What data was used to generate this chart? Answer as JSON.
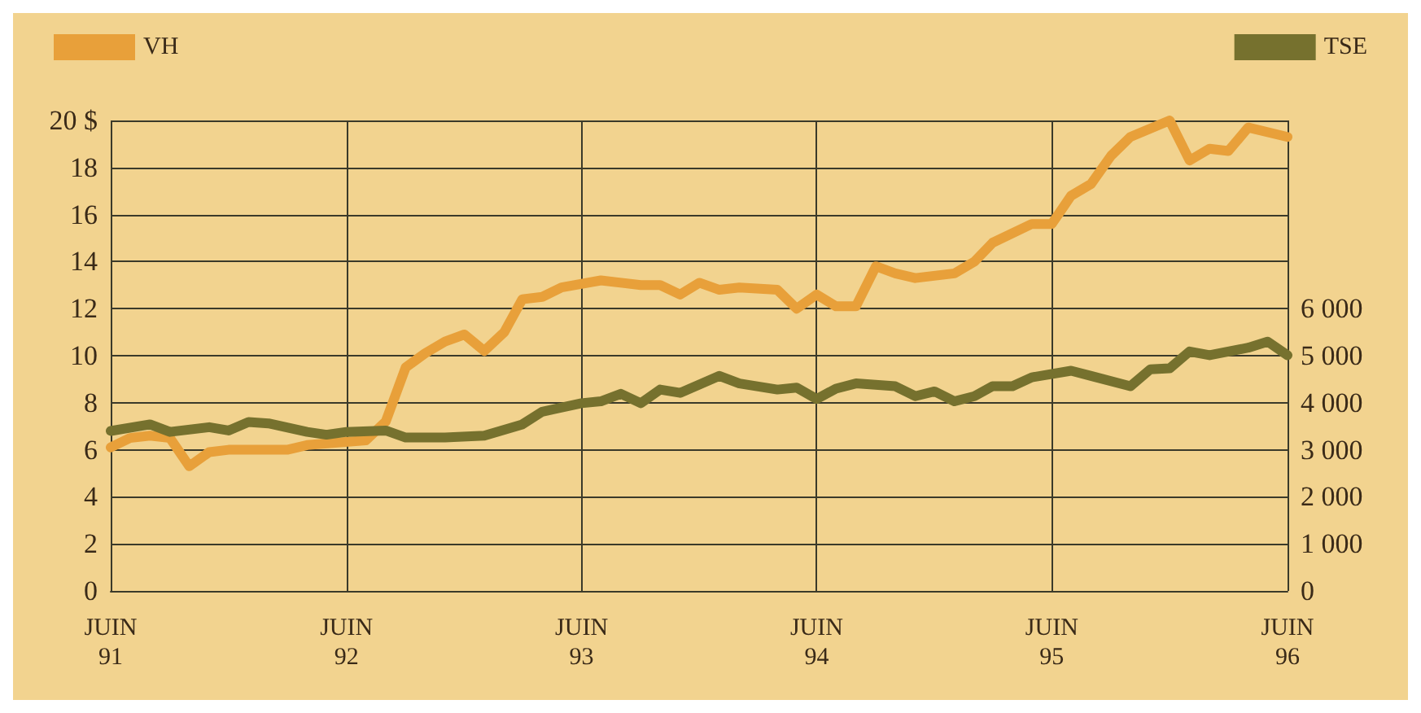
{
  "chart_data": {
    "type": "line",
    "xlim": [
      "1991-06",
      "1996-06"
    ],
    "xticks": [
      {
        "value": "1991-06",
        "label": "JUIN\n91"
      },
      {
        "value": "1992-06",
        "label": "JUIN\n92"
      },
      {
        "value": "1993-06",
        "label": "JUIN\n93"
      },
      {
        "value": "1994-06",
        "label": "JUIN\n94"
      },
      {
        "value": "1995-06",
        "label": "JUIN\n95"
      },
      {
        "value": "1996-06",
        "label": "JUIN\n96"
      }
    ],
    "ylim": [
      0,
      20
    ],
    "yticks": [
      0,
      2,
      4,
      6,
      8,
      10,
      12,
      14,
      16,
      18,
      {
        "value": 20,
        "label": "20 $"
      }
    ],
    "y2lim": [
      0,
      10000
    ],
    "y2ticks": [
      0,
      {
        "value": 1000,
        "label": "1 000"
      },
      {
        "value": 2000,
        "label": "2 000"
      },
      {
        "value": 3000,
        "label": "3 000"
      },
      {
        "value": 4000,
        "label": "4 000"
      },
      {
        "value": 5000,
        "label": "5 000"
      },
      {
        "value": 6000,
        "label": "6 000"
      }
    ],
    "grid": true,
    "legend": "top",
    "marker": "none",
    "line_style": "solid",
    "series": [
      {
        "name": "VH",
        "color": "#e8a03a",
        "x": [
          "1991-06",
          "1991-07",
          "1991-08",
          "1991-09",
          "1991-10",
          "1991-11",
          "1991-12",
          "1992-03",
          "1992-04",
          "1992-07",
          "1992-08",
          "1992-09",
          "1992-10",
          "1992-11",
          "1992-12",
          "1993-01",
          "1993-02",
          "1993-03",
          "1993-04",
          "1993-05",
          "1993-07",
          "1993-09",
          "1993-10",
          "1993-11",
          "1993-12",
          "1994-01",
          "1994-02",
          "1994-04",
          "1994-05",
          "1994-06",
          "1994-07",
          "1994-08",
          "1994-09",
          "1994-10",
          "1994-11",
          "1995-01",
          "1995-02",
          "1995-03",
          "1995-05",
          "1995-06",
          "1995-07",
          "1995-08",
          "1995-09",
          "1995-10",
          "1995-12",
          "1996-01",
          "1996-02",
          "1996-03",
          "1996-04",
          "1996-06"
        ],
        "values": [
          6.1,
          6.5,
          6.6,
          6.5,
          5.3,
          5.9,
          6.0,
          6.0,
          6.2,
          6.4,
          7.2,
          9.5,
          10.1,
          10.6,
          10.9,
          10.2,
          11.0,
          12.4,
          12.5,
          12.9,
          13.2,
          13.0,
          13.0,
          12.6,
          13.1,
          12.8,
          12.9,
          12.8,
          12.0,
          12.6,
          12.1,
          12.1,
          13.8,
          13.5,
          13.3,
          13.5,
          14.0,
          14.8,
          15.6,
          15.6,
          16.8,
          17.3,
          18.5,
          19.3,
          20.0,
          18.3,
          18.8,
          18.7,
          19.7,
          19.3
        ]
      },
      {
        "name": "TSE",
        "color": "#76712e",
        "axis": "y2",
        "x": [
          "1991-06",
          "1991-08",
          "1991-09",
          "1991-11",
          "1991-12",
          "1992-01",
          "1992-02",
          "1992-04",
          "1992-05",
          "1992-06",
          "1992-08",
          "1992-09",
          "1992-11",
          "1993-01",
          "1993-03",
          "1993-04",
          "1993-06",
          "1993-07",
          "1993-08",
          "1993-09",
          "1993-10",
          "1993-11",
          "1994-01",
          "1994-02",
          "1994-04",
          "1994-05",
          "1994-06",
          "1994-07",
          "1994-08",
          "1994-10",
          "1994-11",
          "1994-12",
          "1995-01",
          "1995-02",
          "1995-03",
          "1995-04",
          "1995-05",
          "1995-07",
          "1995-08",
          "1995-10",
          "1995-11",
          "1995-12",
          "1996-01",
          "1996-02",
          "1996-04",
          "1996-05",
          "1996-06"
        ],
        "values": [
          3400,
          3540,
          3380,
          3480,
          3410,
          3590,
          3560,
          3380,
          3320,
          3380,
          3410,
          3260,
          3260,
          3300,
          3540,
          3810,
          3990,
          4030,
          4190,
          3990,
          4280,
          4210,
          4570,
          4410,
          4280,
          4320,
          4080,
          4300,
          4410,
          4350,
          4140,
          4240,
          4030,
          4140,
          4350,
          4350,
          4540,
          4680,
          4570,
          4350,
          4710,
          4730,
          5090,
          5010,
          5170,
          5300,
          5010
        ]
      }
    ]
  }
}
